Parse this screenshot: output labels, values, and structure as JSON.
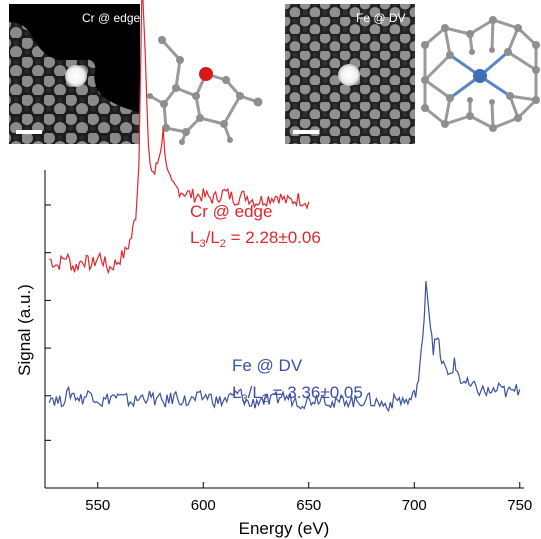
{
  "panels": [
    {
      "label": "Cr @ edge",
      "atom_color": "#d7191c",
      "structure": "edge"
    },
    {
      "label": "Fe @ DV",
      "atom_color": "#3f6fb4",
      "structure": "divacancy"
    }
  ],
  "chart_data": {
    "type": "line",
    "xlabel": "Energy (eV)",
    "ylabel": "Signal (a.u.)",
    "xlim": [
      525,
      752
    ],
    "xticks": [
      550,
      600,
      650,
      700,
      750
    ],
    "series": [
      {
        "name": "Cr @ edge",
        "color": "#e2262d",
        "annotation_name": "Cr @ edge",
        "annotation_ratio": "L3/L2 = 2.28±0.06",
        "x": [
          527,
          531,
          535,
          539,
          543,
          547,
          551,
          555,
          559,
          563,
          566,
          568,
          569.5,
          571,
          572.5,
          574,
          575.5,
          577,
          579,
          581,
          583,
          585,
          588,
          591,
          595,
          600,
          605,
          610,
          615,
          620,
          625,
          630,
          635,
          640,
          645,
          650
        ],
        "y": [
          0.72,
          0.7,
          0.73,
          0.69,
          0.72,
          0.7,
          0.73,
          0.69,
          0.71,
          0.74,
          0.79,
          0.86,
          1.02,
          1.62,
          1.36,
          1.06,
          1.0,
          0.99,
          1.04,
          1.12,
          0.99,
          0.95,
          0.94,
          0.93,
          0.92,
          0.92,
          0.91,
          0.93,
          0.91,
          0.92,
          0.9,
          0.91,
          0.92,
          0.9,
          0.91,
          0.9
        ]
      },
      {
        "name": "Fe @ DV",
        "color": "#3c51a3",
        "annotation_name": "Fe @ DV",
        "annotation_ratio": "L3/L2 = 3.36±0.05",
        "x": [
          527,
          532,
          537,
          542,
          547,
          552,
          557,
          562,
          567,
          572,
          577,
          582,
          587,
          592,
          597,
          602,
          607,
          612,
          617,
          622,
          627,
          632,
          637,
          642,
          647,
          652,
          657,
          662,
          667,
          672,
          677,
          682,
          687,
          692,
          697,
          700,
          702,
          704,
          705.5,
          707,
          709,
          711,
          713,
          716,
          719,
          722,
          726,
          730,
          735,
          740,
          745,
          750
        ],
        "y": [
          0.29,
          0.27,
          0.3,
          0.28,
          0.3,
          0.27,
          0.29,
          0.28,
          0.27,
          0.29,
          0.28,
          0.27,
          0.29,
          0.27,
          0.28,
          0.29,
          0.27,
          0.28,
          0.3,
          0.26,
          0.28,
          0.27,
          0.29,
          0.28,
          0.27,
          0.28,
          0.29,
          0.26,
          0.28,
          0.27,
          0.28,
          0.27,
          0.26,
          0.28,
          0.27,
          0.29,
          0.34,
          0.46,
          0.66,
          0.56,
          0.44,
          0.47,
          0.4,
          0.35,
          0.39,
          0.34,
          0.32,
          0.31,
          0.3,
          0.31,
          0.3,
          0.31
        ]
      }
    ]
  }
}
